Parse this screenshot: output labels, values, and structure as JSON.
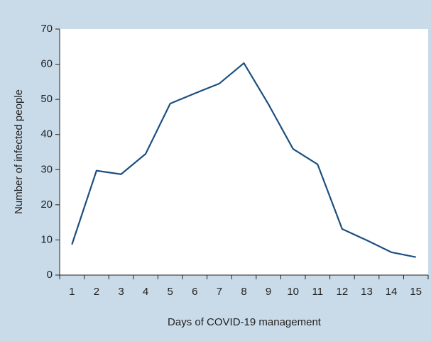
{
  "chart_data": {
    "type": "line",
    "x_label": "Days of COVID-19 management",
    "y_label": "Number of infected people",
    "categories": [
      "1",
      "2",
      "3",
      "4",
      "5",
      "6",
      "7",
      "8",
      "9",
      "10",
      "11",
      "12",
      "13",
      "14",
      "15"
    ],
    "series": [
      {
        "name": "Infected",
        "color": "#1d4f7f",
        "values": [
          8.7,
          29.7,
          28.7,
          34.5,
          48.8,
          51.7,
          54.5,
          60.3,
          48.6,
          35.9,
          31.5,
          13.1,
          9.9,
          6.5,
          5.1
        ]
      }
    ],
    "ylim": [
      0,
      70
    ],
    "yticks": [
      0,
      10,
      20,
      30,
      40,
      50,
      60,
      70
    ]
  }
}
